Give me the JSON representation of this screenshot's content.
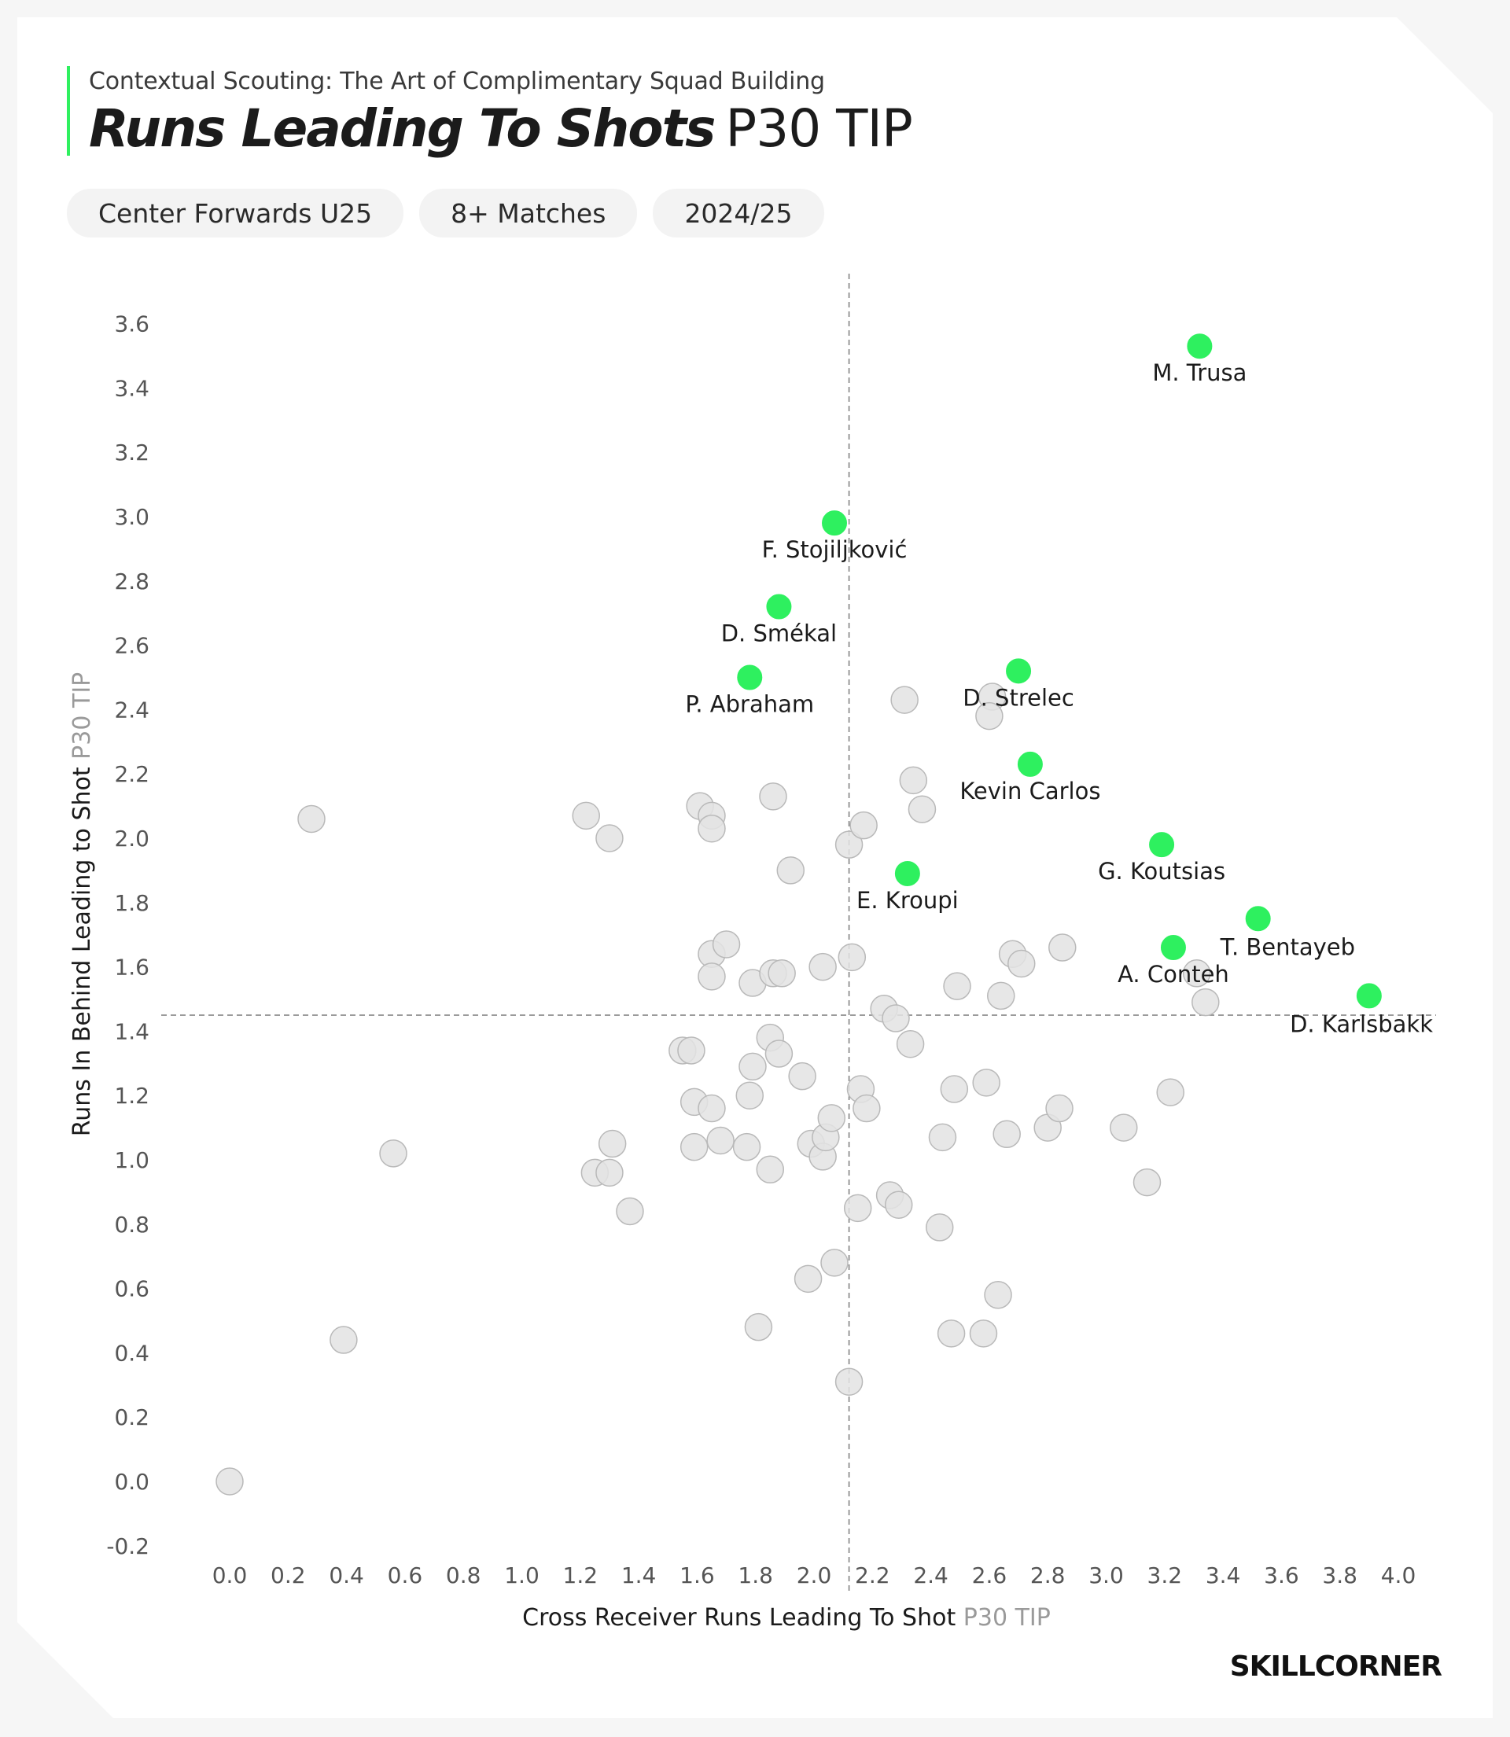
{
  "header": {
    "subtitle": "Contextual Scouting: The Art of Complimentary Squad Building",
    "title_bold": "Runs Leading To Shots",
    "title_light": "P30 TIP",
    "chips": [
      "Center Forwards U25",
      "8+ Matches",
      "2024/25"
    ]
  },
  "brand": {
    "logo_text": "SKILLCORNER",
    "accent_color": "#2ef05f",
    "neutral_point_color": "#e3e3e3"
  },
  "chart_data": {
    "type": "scatter",
    "title": "Runs Leading To Shots P30 TIP",
    "xlabel": "Cross Receiver Runs Leading To Shot",
    "xlabel_unit": "P30 TIP",
    "ylabel": "Runs In Behind Leading to Shot",
    "ylabel_unit": "P30 TIP",
    "xlim": [
      0.0,
      4.0
    ],
    "ylim": [
      -0.2,
      3.6
    ],
    "x_ticks": [
      "0.0",
      "0.2",
      "0.4",
      "0.6",
      "0.8",
      "1.0",
      "1.2",
      "1.4",
      "1.6",
      "1.8",
      "2.0",
      "2.2",
      "2.4",
      "2.6",
      "2.8",
      "3.0",
      "3.2",
      "3.4",
      "3.6",
      "3.8",
      "4.0"
    ],
    "y_ticks": [
      "3.6",
      "3.4",
      "3.2",
      "3.0",
      "2.8",
      "2.6",
      "2.4",
      "2.2",
      "2.0",
      "1.8",
      "1.6",
      "1.4",
      "1.2",
      "1.0",
      "0.8",
      "0.6",
      "0.4",
      "0.2",
      "0.0",
      "-0.2"
    ],
    "reference_lines": {
      "x_mean": 2.12,
      "y_mean": 1.45
    },
    "grid": false,
    "highlighted": [
      {
        "name": "M. Trusa",
        "x": 3.32,
        "y": 3.53
      },
      {
        "name": "F. Stojiljković",
        "x": 2.07,
        "y": 2.98
      },
      {
        "name": "D. Smékal",
        "x": 1.88,
        "y": 2.72
      },
      {
        "name": "P. Abraham",
        "x": 1.78,
        "y": 2.5
      },
      {
        "name": "D. Strelec",
        "x": 2.7,
        "y": 2.52
      },
      {
        "name": "Kevin Carlos",
        "x": 2.74,
        "y": 2.23
      },
      {
        "name": "G. Koutsias",
        "x": 3.19,
        "y": 1.98
      },
      {
        "name": "E. Kroupi",
        "x": 2.32,
        "y": 1.89
      },
      {
        "name": "T. Bentayeb",
        "x": 3.52,
        "y": 1.75
      },
      {
        "name": "A. Conteh",
        "x": 3.23,
        "y": 1.66
      },
      {
        "name": "D. Karlsbakk",
        "x": 3.9,
        "y": 1.51
      }
    ],
    "others": [
      [
        0.0,
        0.0
      ],
      [
        0.28,
        2.06
      ],
      [
        0.39,
        0.44
      ],
      [
        0.56,
        1.02
      ],
      [
        1.22,
        2.07
      ],
      [
        1.3,
        2.0
      ],
      [
        1.25,
        0.96
      ],
      [
        1.3,
        0.96
      ],
      [
        1.31,
        1.05
      ],
      [
        1.37,
        0.84
      ],
      [
        1.55,
        1.34
      ],
      [
        1.58,
        1.34
      ],
      [
        1.59,
        1.18
      ],
      [
        1.59,
        1.04
      ],
      [
        1.61,
        2.1
      ],
      [
        1.65,
        2.07
      ],
      [
        1.65,
        2.03
      ],
      [
        1.65,
        1.64
      ],
      [
        1.65,
        1.57
      ],
      [
        1.65,
        1.16
      ],
      [
        1.7,
        1.67
      ],
      [
        1.68,
        1.06
      ],
      [
        1.79,
        1.55
      ],
      [
        1.78,
        1.2
      ],
      [
        1.79,
        1.29
      ],
      [
        1.77,
        1.04
      ],
      [
        1.81,
        0.48
      ],
      [
        1.86,
        2.13
      ],
      [
        1.85,
        1.38
      ],
      [
        1.85,
        0.97
      ],
      [
        1.86,
        1.58
      ],
      [
        1.89,
        1.58
      ],
      [
        1.88,
        1.33
      ],
      [
        1.92,
        1.9
      ],
      [
        1.96,
        1.26
      ],
      [
        1.99,
        1.05
      ],
      [
        1.98,
        0.63
      ],
      [
        2.03,
        1.6
      ],
      [
        2.03,
        1.01
      ],
      [
        2.04,
        1.07
      ],
      [
        2.06,
        1.13
      ],
      [
        2.07,
        0.68
      ],
      [
        2.12,
        1.98
      ],
      [
        2.13,
        1.63
      ],
      [
        2.12,
        0.31
      ],
      [
        2.15,
        0.85
      ],
      [
        2.16,
        1.22
      ],
      [
        2.17,
        2.04
      ],
      [
        2.18,
        1.16
      ],
      [
        2.24,
        1.47
      ],
      [
        2.26,
        0.89
      ],
      [
        2.28,
        1.44
      ],
      [
        2.29,
        0.86
      ],
      [
        2.31,
        2.43
      ],
      [
        2.34,
        2.18
      ],
      [
        2.33,
        1.36
      ],
      [
        2.37,
        2.09
      ],
      [
        2.43,
        0.79
      ],
      [
        2.44,
        1.07
      ],
      [
        2.48,
        1.22
      ],
      [
        2.49,
        1.54
      ],
      [
        2.47,
        0.46
      ],
      [
        2.59,
        1.24
      ],
      [
        2.58,
        0.46
      ],
      [
        2.61,
        2.44
      ],
      [
        2.6,
        2.38
      ],
      [
        2.63,
        0.58
      ],
      [
        2.64,
        1.51
      ],
      [
        2.66,
        1.08
      ],
      [
        2.68,
        1.64
      ],
      [
        2.71,
        1.61
      ],
      [
        2.8,
        1.1
      ],
      [
        2.85,
        1.66
      ],
      [
        2.84,
        1.16
      ],
      [
        3.06,
        1.1
      ],
      [
        3.14,
        0.93
      ],
      [
        3.22,
        1.21
      ],
      [
        3.31,
        1.58
      ],
      [
        3.34,
        1.49
      ]
    ]
  }
}
